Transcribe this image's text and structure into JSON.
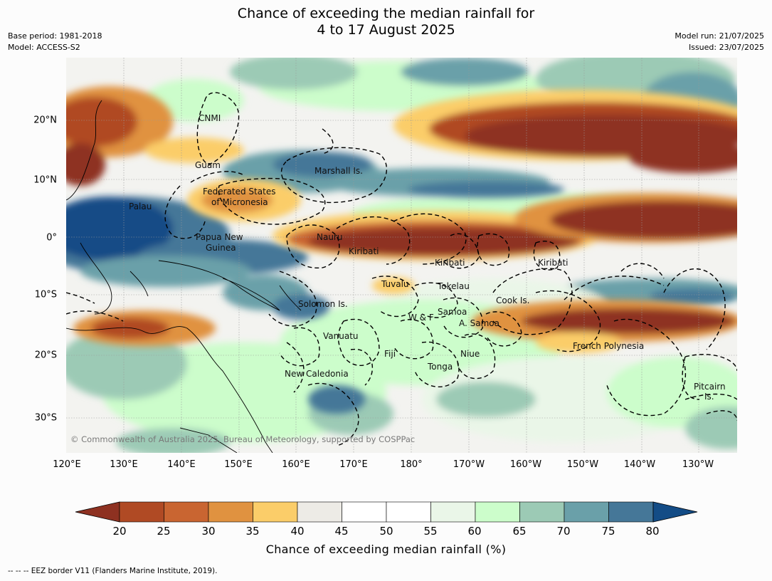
{
  "title_line1": "Chance of exceeding the median rainfall for",
  "title_line2": "4 to 17 August 2025",
  "base_period": "Base period: 1981-2018",
  "model": "Model: ACCESS-S2",
  "model_run": "Model run: 21/07/2025",
  "issued": "Issued: 23/07/2025",
  "copyright": "© Commonwealth of Australia 2025, Bureau of Meteorology, supported by COSPPac",
  "lat_labels": [
    "20°N",
    "10°N",
    "0°",
    "10°S",
    "20°S",
    "30°S"
  ],
  "lon_labels": [
    "120°E",
    "130°E",
    "140°E",
    "150°E",
    "160°E",
    "170°E",
    "180°",
    "170°W",
    "160°W",
    "150°W",
    "140°W",
    "130°W"
  ],
  "regions": {
    "cnmi": "CNMI",
    "guam": "Guam",
    "marshall": "Marshall Is.",
    "fsm1": "Federated States",
    "fsm2": "of Micronesia",
    "palau": "Palau",
    "png1": "Papua New",
    "png2": "Guinea",
    "nauru": "Nauru",
    "kiribati_w": "Kiribati",
    "kiribati_c": "Kiribati",
    "kiribati_e": "Kiribati",
    "tuvalu": "Tuvalu",
    "tokelau": "Tokelau",
    "solomon": "Solomon Is.",
    "cook": "Cook Is.",
    "samoa": "Samoa",
    "wf": "W & F",
    "asamoa": "A. Samoa",
    "vanuatu": "Vanuatu",
    "fiji": "Fiji",
    "niue": "Niue",
    "tonga": "Tonga",
    "french_poly": "French Polynesia",
    "newcal": "New Caledonia",
    "pitcairn1": "Pitcairn",
    "pitcairn2": "Is."
  },
  "colorbar": {
    "ticks": [
      "20",
      "25",
      "30",
      "35",
      "40",
      "45",
      "50",
      "55",
      "60",
      "65",
      "70",
      "75",
      "80"
    ],
    "colors": [
      "#8e3121",
      "#b04a24",
      "#c96531",
      "#e09240",
      "#fbcd69",
      "#edebe6",
      "#ffffff",
      "#ffffff",
      "#eaf6e8",
      "#ccfdcb",
      "#9ccab5",
      "#6aa0a9",
      "#457798",
      "#134c86"
    ],
    "title": "Chance of exceeding median rainfall (%)"
  },
  "footer": "--  --  -- EEZ border V11 (Flanders Marine Institute, 2019)."
}
